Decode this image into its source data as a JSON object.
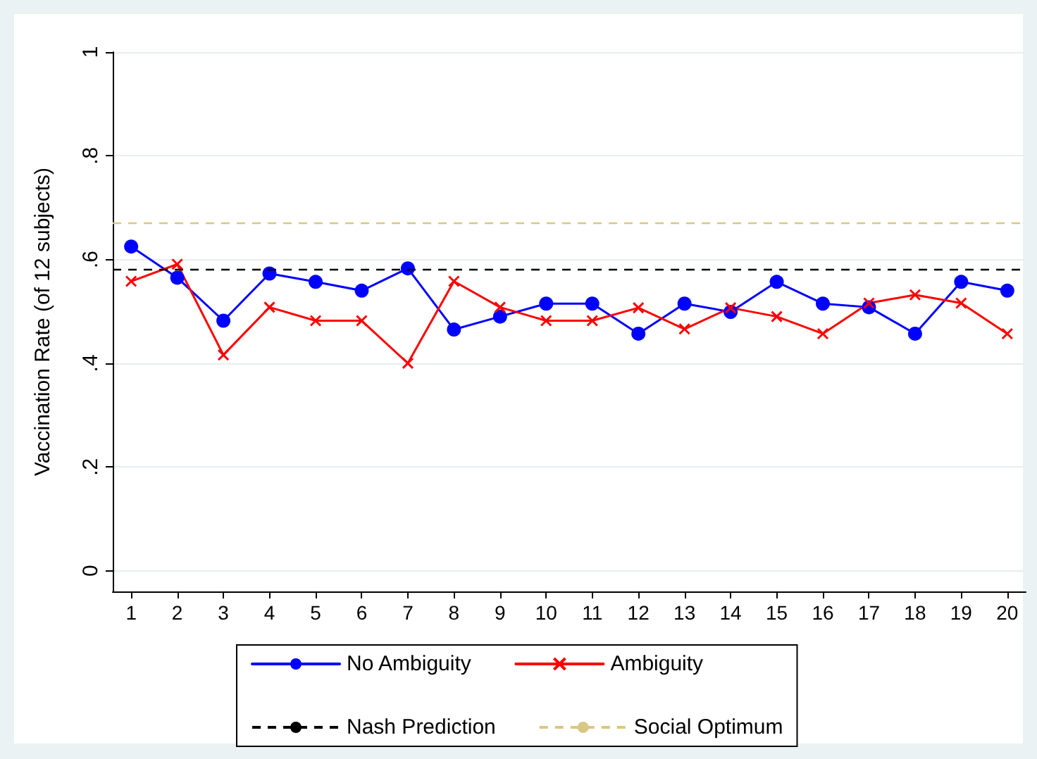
{
  "chart_data": {
    "type": "line",
    "ylabel": "Vaccination Rate (of 12 subjects)",
    "x": [
      1,
      2,
      3,
      4,
      5,
      6,
      7,
      8,
      9,
      10,
      11,
      12,
      13,
      14,
      15,
      16,
      17,
      18,
      19,
      20
    ],
    "xlim": [
      0.6,
      20.4
    ],
    "xticks": [
      1,
      2,
      3,
      4,
      5,
      6,
      7,
      8,
      9,
      10,
      11,
      12,
      13,
      14,
      15,
      16,
      17,
      18,
      19,
      20
    ],
    "ylim": [
      -0.04,
      1
    ],
    "yticks": [
      0,
      {
        "value": 0.2,
        "label": ".2"
      },
      {
        "value": 0.4,
        "label": ".4"
      },
      {
        "value": 0.6,
        "label": ".6"
      },
      {
        "value": 0.8,
        "label": ".8"
      },
      1
    ],
    "series": [
      {
        "name": "No Ambiguity",
        "color": "#0000ff",
        "marker": "circle",
        "values": [
          0.625,
          0.565,
          0.482,
          0.573,
          0.557,
          0.54,
          0.583,
          0.465,
          0.49,
          0.515,
          0.515,
          0.457,
          0.515,
          0.499,
          0.557,
          0.515,
          0.508,
          0.457,
          0.557,
          0.54
        ]
      },
      {
        "name": "Ambiguity",
        "color": "#ff0000",
        "marker": "cross",
        "values": [
          0.558,
          0.591,
          0.416,
          0.508,
          0.482,
          0.482,
          0.4,
          0.558,
          0.508,
          0.482,
          0.482,
          0.507,
          0.466,
          0.507,
          0.49,
          0.457,
          0.516,
          0.532,
          0.516,
          0.457
        ]
      }
    ],
    "ref_lines": [
      {
        "axis": "y",
        "value": 0.583,
        "label": "Nash Prediction",
        "color": "#000000",
        "line_style": "dashed"
      },
      {
        "axis": "y",
        "value": 0.667,
        "label": "Social Optimum",
        "color": "#d8c882",
        "line_style": "dashed"
      }
    ],
    "grid": "y",
    "legend": "bottom",
    "line_style": "solid"
  }
}
